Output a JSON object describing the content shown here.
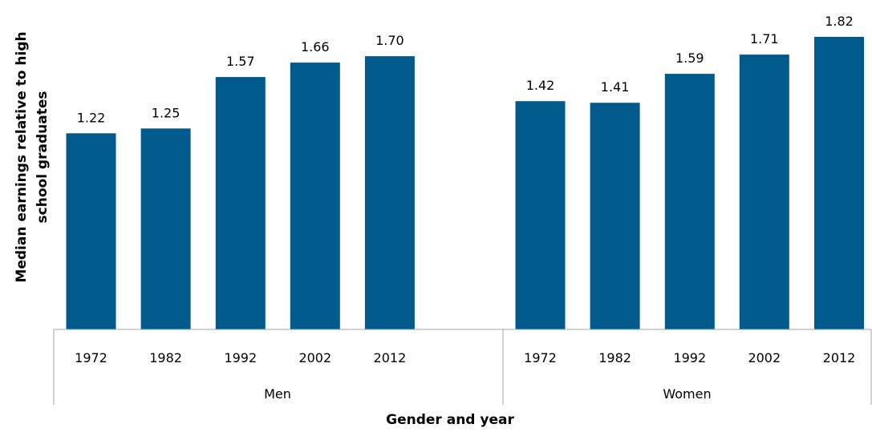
{
  "chart_data": {
    "type": "bar",
    "xlabel": "Gender and year",
    "ylabel_line1": "Median earnings relative to high",
    "ylabel_line2": "school graduates",
    "bar_color": "#005b8c",
    "ylim": [
      0,
      1.82
    ],
    "groups": [
      {
        "name": "Men",
        "categories": [
          "1972",
          "1982",
          "1992",
          "2002",
          "2012"
        ],
        "values": [
          1.22,
          1.25,
          1.57,
          1.66,
          1.7
        ],
        "labels": [
          "1.22",
          "1.25",
          "1.57",
          "1.66",
          "1.70"
        ]
      },
      {
        "name": "Women",
        "categories": [
          "1972",
          "1982",
          "1992",
          "2002",
          "2012"
        ],
        "values": [
          1.42,
          1.41,
          1.59,
          1.71,
          1.82
        ],
        "labels": [
          "1.42",
          "1.41",
          "1.59",
          "1.71",
          "1.82"
        ]
      }
    ],
    "grid": false,
    "legend": "none"
  }
}
